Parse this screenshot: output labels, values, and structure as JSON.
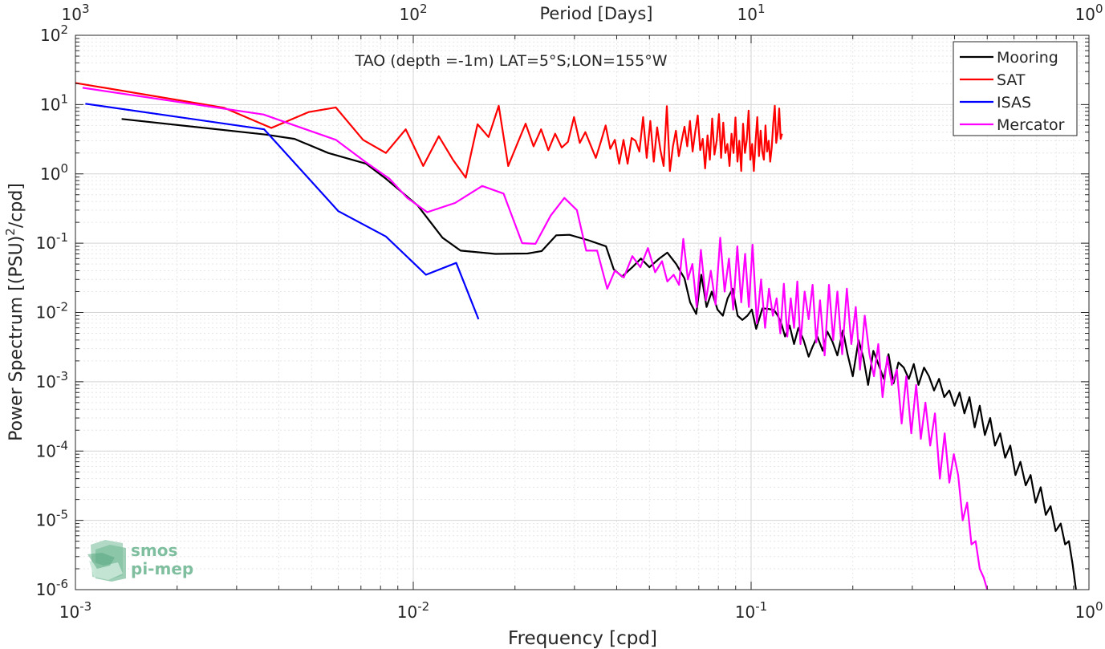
{
  "chart_data": {
    "type": "line",
    "title": "TAO (depth =-1m) LAT=5°S;LON=155°W",
    "xlabel": "Frequency [cpd]",
    "ylabel": "Power Spectrum [(PSU)",
    "ylabel_sup": "2",
    "ylabel_suffix": "/cpd]",
    "top_axis_label": "Period [Days]",
    "x_scale": "log",
    "y_scale": "log",
    "xlim": [
      0.001,
      1
    ],
    "ylim": [
      1e-06,
      100
    ],
    "grid": true,
    "legend_position": "top-right",
    "x_ticks": [
      {
        "base": "10",
        "exp": "-3",
        "value": 0.001
      },
      {
        "base": "10",
        "exp": "-2",
        "value": 0.01
      },
      {
        "base": "10",
        "exp": "-1",
        "value": 0.1
      },
      {
        "base": "10",
        "exp": "0",
        "value": 1
      }
    ],
    "y_ticks": [
      {
        "base": "10",
        "exp": "-6",
        "value": 1e-06
      },
      {
        "base": "10",
        "exp": "-5",
        "value": 1e-05
      },
      {
        "base": "10",
        "exp": "-4",
        "value": 0.0001
      },
      {
        "base": "10",
        "exp": "-3",
        "value": 0.001
      },
      {
        "base": "10",
        "exp": "-2",
        "value": 0.01
      },
      {
        "base": "10",
        "exp": "-1",
        "value": 0.1
      },
      {
        "base": "10",
        "exp": "0",
        "value": 1
      },
      {
        "base": "10",
        "exp": "1",
        "value": 10
      },
      {
        "base": "10",
        "exp": "2",
        "value": 100
      }
    ],
    "top_ticks": [
      {
        "base": "10",
        "exp": "3",
        "value": 0.001
      },
      {
        "base": "10",
        "exp": "2",
        "value": 0.01
      },
      {
        "base": "10",
        "exp": "1",
        "value": 0.1
      },
      {
        "base": "10",
        "exp": "0",
        "value": 1
      }
    ],
    "series": [
      {
        "name": "Mooring",
        "color": "#000000",
        "x": [
          0.00137,
          0.00365,
          0.00445,
          0.0056,
          0.00725,
          0.0083,
          0.0103,
          0.0122,
          0.0138,
          0.0175,
          0.0218,
          0.024,
          0.0265,
          0.029,
          0.033,
          0.0372,
          0.0392,
          0.0415,
          0.0445,
          0.0472,
          0.05,
          0.0535,
          0.0565,
          0.06,
          0.0635,
          0.066,
          0.0688,
          0.0712,
          0.0738,
          0.0765,
          0.0795,
          0.0825,
          0.0852,
          0.0882,
          0.0912,
          0.0942,
          0.0975,
          0.1005,
          0.1035,
          0.108,
          0.113,
          0.117,
          0.12,
          0.123,
          0.126,
          0.13,
          0.134,
          0.138,
          0.143,
          0.148,
          0.152,
          0.157,
          0.163,
          0.168,
          0.174,
          0.18,
          0.187,
          0.193,
          0.2,
          0.208,
          0.215,
          0.222,
          0.23,
          0.238,
          0.247,
          0.255,
          0.264,
          0.273,
          0.283,
          0.293,
          0.303,
          0.313,
          0.325,
          0.336,
          0.348,
          0.36,
          0.373,
          0.386,
          0.4,
          0.414,
          0.428,
          0.443,
          0.459,
          0.475,
          0.492,
          0.51,
          0.527,
          0.546,
          0.565,
          0.585,
          0.606,
          0.627,
          0.65,
          0.672,
          0.695,
          0.72,
          0.745,
          0.77,
          0.797,
          0.825,
          0.85,
          0.872,
          0.895,
          0.915
        ],
        "y": [
          6.2,
          3.7,
          3.2,
          2.0,
          1.4,
          0.85,
          0.35,
          0.12,
          0.078,
          0.07,
          0.071,
          0.077,
          0.13,
          0.132,
          0.11,
          0.09,
          0.042,
          0.033,
          0.045,
          0.06,
          0.045,
          0.06,
          0.073,
          0.05,
          0.031,
          0.014,
          0.0095,
          0.035,
          0.012,
          0.02,
          0.011,
          0.009,
          0.016,
          0.022,
          0.009,
          0.0078,
          0.009,
          0.011,
          0.0058,
          0.0115,
          0.0112,
          0.0108,
          0.009,
          0.0068,
          0.0045,
          0.0065,
          0.0035,
          0.006,
          0.004,
          0.0023,
          0.0032,
          0.0045,
          0.0028,
          0.0053,
          0.0038,
          0.0024,
          0.0055,
          0.0025,
          0.0012,
          0.004,
          0.0022,
          0.0009,
          0.0028,
          0.0018,
          0.0011,
          0.0025,
          0.00095,
          0.0019,
          0.0016,
          0.0011,
          0.0018,
          0.0009,
          0.0016,
          0.0012,
          0.00075,
          0.0011,
          0.0006,
          0.00075,
          0.00045,
          0.0007,
          0.00035,
          0.0006,
          0.00022,
          0.00045,
          0.00017,
          0.0003,
          0.00012,
          0.00018,
          8e-05,
          0.00012,
          4.5e-05,
          7e-05,
          3.2e-05,
          4.5e-05,
          1.8e-05,
          3e-05,
          1.2e-05,
          1.6e-05,
          7e-06,
          9e-06,
          4.5e-06,
          5e-06,
          2.3e-06,
          1e-06
        ]
      },
      {
        "name": "SAT",
        "color": "#ff0000",
        "x": [
          0.001,
          0.00275,
          0.0038,
          0.0049,
          0.0059,
          0.0071,
          0.0083,
          0.0095,
          0.0107,
          0.0119,
          0.0131,
          0.0143,
          0.0155,
          0.0167,
          0.0179,
          0.0191,
          0.0203,
          0.0215,
          0.0227,
          0.0239,
          0.0251,
          0.0263,
          0.0275,
          0.0287,
          0.0299,
          0.0311,
          0.0323,
          0.0335,
          0.0347,
          0.0359,
          0.0371,
          0.0383,
          0.0395,
          0.0407,
          0.0419,
          0.0431,
          0.0443,
          0.0455,
          0.0467,
          0.0479,
          0.0491,
          0.0503,
          0.0515,
          0.0527,
          0.0539,
          0.0551,
          0.0563,
          0.0575,
          0.0587,
          0.0599,
          0.0611,
          0.0623,
          0.0635,
          0.0647,
          0.0659,
          0.0671,
          0.0683,
          0.0695,
          0.0707,
          0.0719,
          0.0731,
          0.0743,
          0.0755,
          0.0767,
          0.0779,
          0.0791,
          0.0803,
          0.0815,
          0.0827,
          0.0839,
          0.0851,
          0.0863,
          0.0875,
          0.0887,
          0.0899,
          0.0911,
          0.0923,
          0.0935,
          0.0947,
          0.0959,
          0.0971,
          0.0983,
          0.0995,
          0.1007,
          0.1019,
          0.1031,
          0.1043,
          0.1055,
          0.1067,
          0.1079,
          0.1091,
          0.1103,
          0.1115,
          0.1127,
          0.1139,
          0.1151,
          0.1163,
          0.1175,
          0.1187,
          0.1199,
          0.1211,
          0.1223,
          0.1235
        ],
        "y": [
          20.5,
          9.0,
          4.6,
          7.8,
          9.1,
          3.1,
          2.0,
          4.4,
          1.3,
          3.5,
          1.6,
          0.88,
          5.2,
          3.4,
          9.6,
          1.3,
          2.7,
          5.3,
          2.5,
          4.4,
          2.2,
          3.8,
          2.4,
          2.9,
          6.6,
          2.8,
          4.0,
          2.6,
          1.7,
          2.9,
          5.0,
          2.3,
          3.1,
          1.4,
          3.1,
          1.4,
          3.3,
          3.0,
          2.1,
          6.6,
          1.7,
          5.8,
          1.5,
          4.7,
          2.2,
          1.3,
          9.5,
          1.1,
          2.5,
          4.2,
          1.8,
          3.0,
          4.8,
          2.5,
          5.8,
          2.1,
          4.0,
          7.0,
          2.2,
          3.2,
          1.2,
          3.6,
          1.6,
          6.3,
          1.9,
          3.0,
          7.3,
          1.7,
          5.5,
          2.0,
          2.7,
          1.3,
          3.8,
          2.0,
          6.5,
          1.5,
          3.0,
          1.1,
          5.3,
          2.0,
          3.1,
          8.2,
          1.6,
          2.7,
          1.1,
          3.0,
          6.6,
          1.8,
          4.2,
          2.1,
          1.6,
          5.0,
          2.1,
          3.0,
          1.5,
          2.4,
          5.4,
          9.6,
          2.8,
          4.0,
          8.8,
          3.2,
          3.8
        ]
      },
      {
        "name": "ISAS",
        "color": "#0000ff",
        "x": [
          0.00107,
          0.00362,
          0.006,
          0.0083,
          0.0109,
          0.0134,
          0.0156
        ],
        "y": [
          10.3,
          4.4,
          0.29,
          0.125,
          0.035,
          0.052,
          0.008
        ]
      },
      {
        "name": "Mercator",
        "color": "#ff00ff",
        "x": [
          0.00105,
          0.0036,
          0.0059,
          0.0072,
          0.0085,
          0.0096,
          0.011,
          0.0133,
          0.016,
          0.0185,
          0.021,
          0.023,
          0.0255,
          0.028,
          0.0305,
          0.0325,
          0.035,
          0.0375,
          0.0395,
          0.042,
          0.0445,
          0.047,
          0.0495,
          0.052,
          0.0545,
          0.0565,
          0.059,
          0.0612,
          0.063,
          0.065,
          0.067,
          0.069,
          0.071,
          0.0735,
          0.076,
          0.0785,
          0.081,
          0.0835,
          0.086,
          0.0885,
          0.091,
          0.0935,
          0.096,
          0.0985,
          0.101,
          0.104,
          0.107,
          0.11,
          0.113,
          0.116,
          0.119,
          0.122,
          0.125,
          0.128,
          0.131,
          0.134,
          0.137,
          0.14,
          0.144,
          0.148,
          0.152,
          0.156,
          0.16,
          0.165,
          0.17,
          0.175,
          0.18,
          0.186,
          0.192,
          0.198,
          0.204,
          0.21,
          0.217,
          0.224,
          0.231,
          0.238,
          0.245,
          0.253,
          0.261,
          0.27,
          0.279,
          0.288,
          0.298,
          0.308,
          0.318,
          0.328,
          0.339,
          0.35,
          0.362,
          0.374,
          0.386,
          0.398,
          0.41,
          0.423,
          0.436,
          0.449,
          0.462,
          0.475,
          0.488,
          0.5
        ],
        "y": [
          17.5,
          7.2,
          3.1,
          1.5,
          0.85,
          0.45,
          0.28,
          0.38,
          0.67,
          0.52,
          0.1,
          0.098,
          0.25,
          0.45,
          0.3,
          0.078,
          0.078,
          0.022,
          0.04,
          0.032,
          0.065,
          0.045,
          0.085,
          0.038,
          0.055,
          0.028,
          0.035,
          0.025,
          0.115,
          0.03,
          0.05,
          0.012,
          0.08,
          0.015,
          0.04,
          0.013,
          0.12,
          0.02,
          0.06,
          0.011,
          0.09,
          0.014,
          0.07,
          0.012,
          0.095,
          0.007,
          0.03,
          0.006,
          0.022,
          0.009,
          0.016,
          0.005,
          0.026,
          0.0045,
          0.016,
          0.006,
          0.028,
          0.0035,
          0.02,
          0.008,
          0.025,
          0.0037,
          0.015,
          0.0024,
          0.025,
          0.004,
          0.02,
          0.0025,
          0.022,
          0.0035,
          0.012,
          0.0015,
          0.009,
          0.0025,
          0.0012,
          0.0035,
          0.0006,
          0.0023,
          0.0009,
          0.0015,
          0.00025,
          0.0012,
          0.00018,
          0.0009,
          0.00015,
          0.0005,
          0.00012,
          0.00035,
          4e-05,
          0.00018,
          3.5e-05,
          9e-05,
          4.5e-05,
          1e-05,
          1.8e-05,
          4.5e-06,
          5e-06,
          2e-06,
          1.5e-06,
          1e-06
        ]
      }
    ]
  },
  "logo": {
    "line1": "smos",
    "line2": "pi-mep"
  }
}
